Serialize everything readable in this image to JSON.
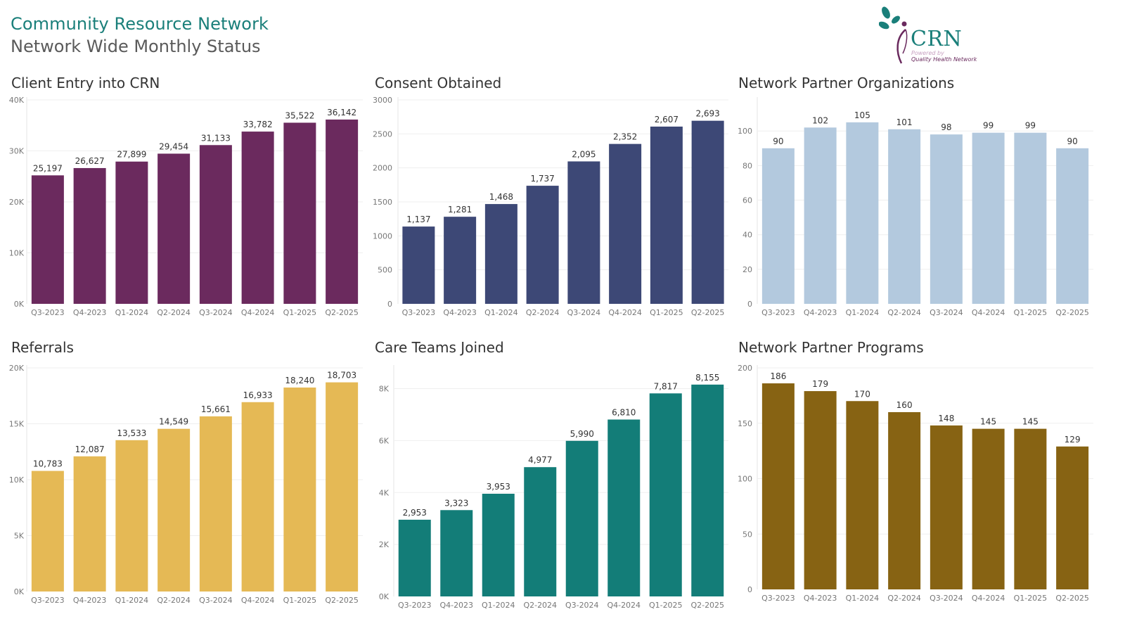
{
  "header": {
    "title": "Community Resource Network",
    "subtitle": "Network Wide Monthly Status"
  },
  "logo": {
    "text": "CRN",
    "powered_by": "Powered by",
    "org": "Quality Health Network",
    "leaf_color": "#1a7f7a",
    "figure_color": "#6a2a5e"
  },
  "chart_data": [
    {
      "type": "bar",
      "title": "Client Entry into CRN",
      "color": "#6b2a5e",
      "categories": [
        "Q3-2023",
        "Q4-2023",
        "Q1-2024",
        "Q2-2024",
        "Q3-2024",
        "Q4-2024",
        "Q1-2025",
        "Q2-2025"
      ],
      "values": [
        25197,
        26627,
        27899,
        29454,
        31133,
        33782,
        35522,
        36142
      ],
      "labels": [
        "25,197",
        "26,627",
        "27,899",
        "29,454",
        "31,133",
        "33,782",
        "35,522",
        "36,142"
      ],
      "ylim": [
        0,
        40000
      ],
      "yticks": [
        0,
        10000,
        20000,
        30000,
        40000
      ],
      "ytick_labels": [
        "0K",
        "10K",
        "20K",
        "30K",
        "40K"
      ]
    },
    {
      "type": "bar",
      "title": "Consent Obtained",
      "color": "#3d4876",
      "categories": [
        "Q3-2023",
        "Q4-2023",
        "Q1-2024",
        "Q2-2024",
        "Q3-2024",
        "Q4-2024",
        "Q1-2025",
        "Q2-2025"
      ],
      "values": [
        1137,
        1281,
        1468,
        1737,
        2095,
        2352,
        2607,
        2693
      ],
      "labels": [
        "1,137",
        "1,281",
        "1,468",
        "1,737",
        "2,095",
        "2,352",
        "2,607",
        "2,693"
      ],
      "ylim": [
        0,
        3000
      ],
      "yticks": [
        0,
        500,
        1000,
        1500,
        2000,
        2500,
        3000
      ],
      "ytick_labels": [
        "0",
        "500",
        "1000",
        "1500",
        "2000",
        "2500",
        "3000"
      ]
    },
    {
      "type": "bar",
      "title": "Network Partner Organizations",
      "color": "#b3c9de",
      "categories": [
        "Q3-2023",
        "Q4-2023",
        "Q1-2024",
        "Q2-2024",
        "Q3-2024",
        "Q4-2024",
        "Q1-2025",
        "Q2-2025"
      ],
      "values": [
        90,
        102,
        105,
        101,
        98,
        99,
        99,
        90
      ],
      "labels": [
        "90",
        "102",
        "105",
        "101",
        "98",
        "99",
        "99",
        "90"
      ],
      "ylim": [
        0,
        118
      ],
      "yticks": [
        0,
        20,
        40,
        60,
        80,
        100
      ],
      "ytick_labels": [
        "0",
        "20",
        "40",
        "60",
        "80",
        "100"
      ]
    },
    {
      "type": "bar",
      "title": "Referrals",
      "color": "#e5b955",
      "categories": [
        "Q3-2023",
        "Q4-2023",
        "Q1-2024",
        "Q2-2024",
        "Q3-2024",
        "Q4-2024",
        "Q1-2025",
        "Q2-2025"
      ],
      "values": [
        10783,
        12087,
        13533,
        14549,
        15661,
        16933,
        18240,
        18703
      ],
      "labels": [
        "10,783",
        "12,087",
        "13,533",
        "14,549",
        "15,661",
        "16,933",
        "18,240",
        "18,703"
      ],
      "ylim": [
        0,
        20000
      ],
      "yticks": [
        0,
        5000,
        10000,
        15000,
        20000
      ],
      "ytick_labels": [
        "0K",
        "5K",
        "10K",
        "15K",
        "20K"
      ]
    },
    {
      "type": "bar",
      "title": "Care Teams Joined",
      "color": "#137d78",
      "categories": [
        "Q3-2023",
        "Q4-2023",
        "Q1-2024",
        "Q2-2024",
        "Q3-2024",
        "Q4-2024",
        "Q1-2025",
        "Q2-2025"
      ],
      "values": [
        2953,
        3323,
        3953,
        4977,
        5990,
        6810,
        7817,
        8155
      ],
      "labels": [
        "2,953",
        "3,323",
        "3,953",
        "4,977",
        "5,990",
        "6,810",
        "7,817",
        "8,155"
      ],
      "ylim": [
        0,
        8800
      ],
      "yticks": [
        0,
        2000,
        4000,
        6000,
        8000
      ],
      "ytick_labels": [
        "0K",
        "2K",
        "4K",
        "6K",
        "8K"
      ]
    },
    {
      "type": "bar",
      "title": "Network Partner Programs",
      "color": "#876313",
      "categories": [
        "Q3-2023",
        "Q4-2023",
        "Q1-2024",
        "Q2-2024",
        "Q3-2024",
        "Q4-2024",
        "Q1-2025",
        "Q2-2025"
      ],
      "values": [
        186,
        179,
        170,
        160,
        148,
        145,
        145,
        129
      ],
      "labels": [
        "186",
        "179",
        "170",
        "160",
        "148",
        "145",
        "145",
        "129"
      ],
      "ylim": [
        0,
        200
      ],
      "yticks": [
        0,
        50,
        100,
        150,
        200
      ],
      "ytick_labels": [
        "0",
        "50",
        "100",
        "150",
        "200"
      ]
    }
  ]
}
